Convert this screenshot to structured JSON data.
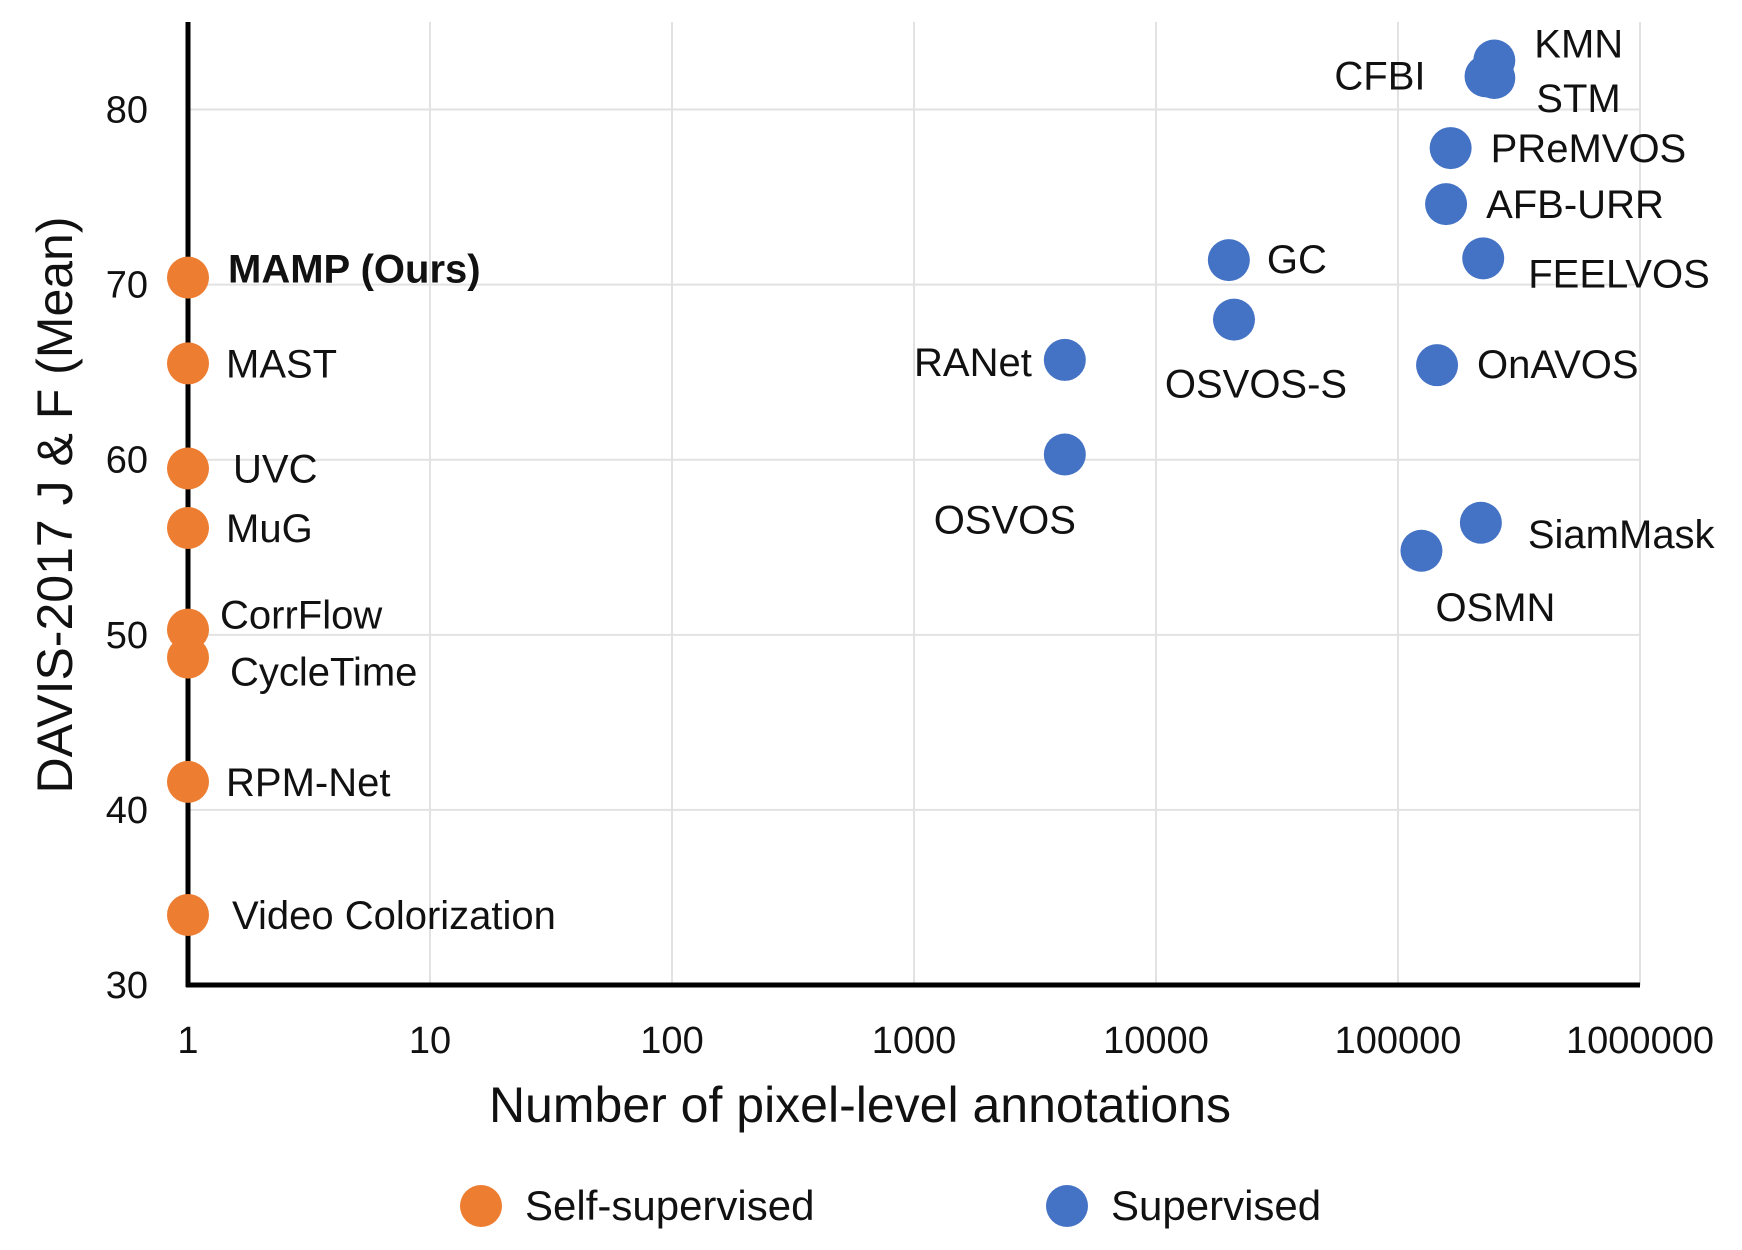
{
  "chart_data": {
    "type": "scatter",
    "xlabel": "Number of pixel-level annotations",
    "ylabel": "DAVIS-2017  J & F (Mean)",
    "x_scale": "log",
    "xlim": [
      1,
      1000000
    ],
    "ylim": [
      30,
      85
    ],
    "x_ticks": [
      "1",
      "10",
      "100",
      "1000",
      "10000",
      "100000",
      "1000000"
    ],
    "y_ticks": [
      "30",
      "40",
      "50",
      "60",
      "70",
      "80"
    ],
    "grid": true,
    "legend_position": "bottom",
    "colors": {
      "self": "#ED7D31",
      "supervised": "#4472C4",
      "highlight": "#FF0000"
    },
    "series": [
      {
        "name": "Self-supervised",
        "color": "#ED7D31",
        "points": [
          {
            "label": "MAMP (Ours)",
            "x": 1,
            "y": 70.4,
            "highlight": true
          },
          {
            "label": "MAST",
            "x": 1,
            "y": 65.5
          },
          {
            "label": "UVC",
            "x": 1,
            "y": 59.5
          },
          {
            "label": "MuG",
            "x": 1,
            "y": 56.1
          },
          {
            "label": "CorrFlow",
            "x": 1,
            "y": 50.3
          },
          {
            "label": "CycleTime",
            "x": 1,
            "y": 48.7
          },
          {
            "label": "RPM-Net",
            "x": 1,
            "y": 41.6
          },
          {
            "label": "Video Colorization",
            "x": 1,
            "y": 34.0
          }
        ]
      },
      {
        "name": "Supervised",
        "color": "#4472C4",
        "points": [
          {
            "label": "KMN",
            "x": 250000,
            "y": 82.8
          },
          {
            "label": "STM",
            "x": 250000,
            "y": 81.8
          },
          {
            "label": "CFBI",
            "x": 230000,
            "y": 81.9
          },
          {
            "label": "PReMVOS",
            "x": 165000,
            "y": 77.8
          },
          {
            "label": "AFB-URR",
            "x": 158000,
            "y": 74.6
          },
          {
            "label": "FEELVOS",
            "x": 225000,
            "y": 71.5
          },
          {
            "label": "GC",
            "x": 20000,
            "y": 71.4
          },
          {
            "label": "OSVOS-S",
            "x": 21000,
            "y": 68.0
          },
          {
            "label": "RANet",
            "x": 4200,
            "y": 65.7
          },
          {
            "label": "OnAVOS",
            "x": 145000,
            "y": 65.4
          },
          {
            "label": "OSVOS",
            "x": 4200,
            "y": 60.3
          },
          {
            "label": "SiamMask",
            "x": 220000,
            "y": 56.4
          },
          {
            "label": "OSMN",
            "x": 125000,
            "y": 54.8
          }
        ]
      }
    ]
  }
}
